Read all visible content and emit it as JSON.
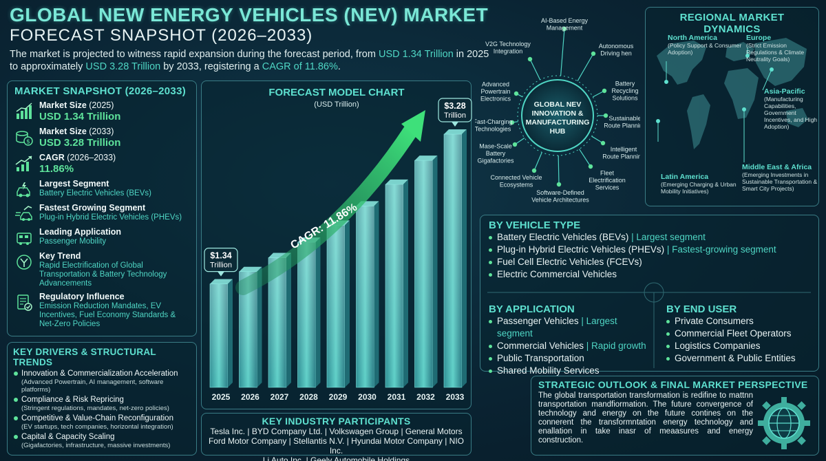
{
  "header": {
    "title_line1": "GLOBAL NEW ENERGY VEHICLES (NEV) MARKET",
    "title_line2": "FORECAST SNAPSHOT (2026–2033)",
    "intro_pre": "The market is projected to witness rapid expansion during the forecast period, from ",
    "intro_start_value": "USD 1.34 Trillion",
    "intro_mid": " in 2025 to approximately ",
    "intro_end_value": "USD 3.28 Trillion",
    "intro_mid2": " by 2033, registering a ",
    "intro_cagr": "CAGR of 11.86%",
    "intro_end": "."
  },
  "snapshot": {
    "title": "MARKET SNAPSHOT (2026–2033)",
    "market_size_2025_label": "Market Size",
    "market_size_2025_year": "(2025)",
    "market_size_2025_value": "USD 1.34 Trillion",
    "market_size_2033_label": "Market Size",
    "market_size_2033_year": "(2033)",
    "market_size_2033_value": "USD 3.28 Trillion",
    "cagr_label": "CAGR",
    "cagr_period": "(2026–2033)",
    "cagr_value": "11.86%",
    "largest_segment_label": "Largest Segment",
    "largest_segment_value": "Battery Electric Vehicles (BEVs)",
    "fastest_segment_label": "Fastest Growing Segment",
    "fastest_segment_value": "Plug-in Hybrid Electric Vehicles (PHEVs)",
    "leading_app_label": "Leading Application",
    "leading_app_value": "Passenger Mobility",
    "key_trend_label": "Key Trend",
    "key_trend_value": "Rapid Electrification of Global Transportation & Battery Technology Advancements",
    "regulatory_label": "Regulatory Influence",
    "regulatory_value": "Emission Reduction Mandates, EV Incentives, Fuel Economy Standards & Net-Zero Policies"
  },
  "drivers": {
    "title": "KEY DRIVERS & STRUCTURAL TRENDS",
    "items": [
      {
        "heading": "Innovation & Commercialization Acceleration",
        "detail": "(Advanced Powertrain, AI management, software platforms)"
      },
      {
        "heading": "Compliance & Risk Repricing",
        "detail": "(Stringent regulations, mandates, net-zero policies)"
      },
      {
        "heading": "Competitive & Value-Chain Reconfiguration",
        "detail": "(EV startups, tech companies, horizontal integration)"
      },
      {
        "heading": "Capital & Capacity Scaling",
        "detail": "(Gigafactories, infrastructure, massive investments)"
      }
    ]
  },
  "chart_data": {
    "type": "bar",
    "title": "FORECAST MODEL CHART",
    "subtitle": "(USD Trillion)",
    "categories": [
      "2025",
      "2026",
      "2027",
      "2028",
      "2029",
      "2030",
      "2031",
      "2032",
      "2033"
    ],
    "values": [
      1.34,
      1.5,
      1.68,
      1.88,
      2.1,
      2.35,
      2.63,
      2.94,
      3.28
    ],
    "ylim": [
      0,
      3.28
    ],
    "grid": false,
    "data_labels": [
      {
        "category": "2025",
        "line1": "$1.34",
        "line2": "Trillion"
      },
      {
        "category": "2033",
        "line1": "$3.28",
        "line2": "Trillion"
      }
    ],
    "annotation": "CAGR: 11.86%",
    "bar_color": "#3fa9a8",
    "arrow_color": "#3ee07a"
  },
  "participants": {
    "title": "KEY INDUSTRY PARTICIPANTS",
    "line1": "Tesla Inc. | BYD Company Ltd. | Volkswagen Group | General Motors",
    "line2": "Ford Motor Company | Stellantis N.V. | Hyundai Motor Company | NIO Inc.",
    "line3": "Li Auto Inc. | Geely Automobile Holdings"
  },
  "hub": {
    "center_line1": "GLOBAL NEV",
    "center_line2": "INNOVATION &",
    "center_line3": "MANUFACTURING",
    "center_line4": "HUB",
    "nodes": [
      "AI-Based Energy Management",
      "Autonomous Driving hen",
      "Battery Recycling Solutions",
      "Sustainable Route Planning",
      "Intelligent Route Planning",
      "Fleet Electrification Services",
      "Software-Defined Vehicle Architectures",
      "Connected Vehicle Ecosystems",
      "Mase-Scale Battery Gigafactories",
      "Fast-Charging Technologies",
      "Advanced Powertrain Electronics",
      "V2G Technology Integration"
    ]
  },
  "regional": {
    "title": "REGIONAL MARKET DYNAMICS",
    "north_america": {
      "name": "North America",
      "detail": "(Policy Support & Consumer Adoption)"
    },
    "europe": {
      "name": "Europe",
      "detail": "(Strict Emission Regulations & Climate Neutrality Goals)"
    },
    "asia_pacific": {
      "name": "Asia-Pacific",
      "detail": "(Manufacturing Capabilities, Government Incentives, and High Adoption)"
    },
    "latin_america": {
      "name": "Latin America",
      "detail": "(Emerging Charging & Urban Mobility Initiatives)"
    },
    "mea": {
      "name": "Middle East & Africa",
      "detail": "(Emerging Investments in Sustainable Transportation & Smart City Projects)"
    }
  },
  "segments": {
    "vehicle_type_title": "BY VEHICLE TYPE",
    "vehicle_types": [
      {
        "name": "Battery Electric Vehicles (BEVs)",
        "note": " | Largest segment"
      },
      {
        "name": "Plug-in Hybrid Electric Vehicles (PHEVs)",
        "note": " | Fastest-growing segment"
      },
      {
        "name": "Fuel Cell Electric Vehicles (FCEVs)",
        "note": ""
      },
      {
        "name": "Electric Commercial Vehicles",
        "note": ""
      }
    ],
    "application_title": "BY APPLICATION",
    "applications": [
      {
        "name": "Passenger Vehicles",
        "note": " | Largest segment"
      },
      {
        "name": "Commercial Vehicles",
        "note": " | Rapid growth"
      },
      {
        "name": "Public Transportation",
        "note": ""
      },
      {
        "name": "Shared Mobility Services",
        "note": ""
      }
    ],
    "end_user_title": "BY END USER",
    "end_users": [
      "Private Consumers",
      "Commercial Fleet Operators",
      "Logistics Companies",
      "Government & Public Entities"
    ]
  },
  "outlook": {
    "title": "STRATEGIC OUTLOOK & FINAL MARKET PERSPECTIVE",
    "text": "The global transportation transformation is redifine to mattnn transportation mandfiormation. The future convergence of technology and energy on the future contines on the connerent the transformntation energy technology and enallation in take inasr of meaasures and energy construction."
  },
  "colors": {
    "accent": "#5ee0cf",
    "green": "#5ee39b",
    "border": "#3a7d86"
  }
}
